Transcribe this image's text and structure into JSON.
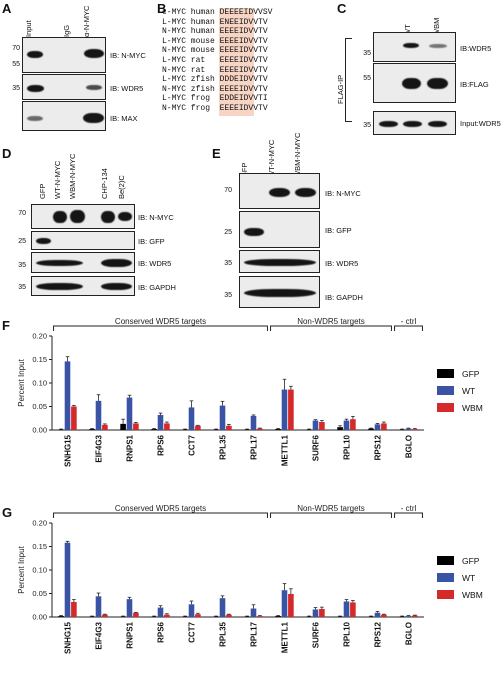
{
  "panels": {
    "A": "A",
    "B": "B",
    "C": "C",
    "D": "D",
    "E": "E",
    "F": "F",
    "G": "G"
  },
  "panel_a": {
    "lanes": [
      "Input",
      "IgG",
      "α-N-MYC"
    ],
    "blots": [
      {
        "label": "IB: N-MYC",
        "mw": [
          "70",
          "55"
        ]
      },
      {
        "label": "IB: WDR5",
        "mw": [
          "35"
        ]
      },
      {
        "label": "IB: MAX",
        "mw": []
      }
    ]
  },
  "panel_b": {
    "rows": [
      {
        "species": "c-MYC human",
        "seq": "DEEEEIDVVSV"
      },
      {
        "species": "L-MYC human",
        "seq": "ENEEIDVVTV"
      },
      {
        "species": "N-MYC human",
        "seq": "EEEEIDVVTV"
      },
      {
        "species": "L-MYC mouse",
        "seq": "EEEEIDVVTV"
      },
      {
        "species": "N-MYC mouse",
        "seq": "EEEEIDVVTV"
      },
      {
        "species": "L-MYC rat",
        "seq": "EEEEIDVVTV"
      },
      {
        "species": "N-MYC rat",
        "seq": "EEEEIDVVTV"
      },
      {
        "species": "L-MYC zfish",
        "seq": "DDDEIDVVTV"
      },
      {
        "species": "N-MYC zfish",
        "seq": "EEEEIDVVTV"
      },
      {
        "species": "L-MYC frog",
        "seq": "EDDEIDVVTI"
      },
      {
        "species": "N-MYC frog",
        "seq": "EEEEIDVVTV"
      }
    ]
  },
  "panel_c": {
    "lanes": [
      "-",
      "WT",
      "WBM"
    ],
    "side_label": "FLAG-IP",
    "blots": [
      {
        "label": "IB:WDR5",
        "mw": "35"
      },
      {
        "label": "IB:FLAG",
        "mw": "55"
      },
      {
        "label": "Input:WDR5",
        "mw": "35"
      }
    ]
  },
  "panel_d": {
    "lanes": [
      "GFP",
      "WT-N-MYC",
      "WBM-N-MYC",
      "CHP-134",
      "Be(2)C"
    ],
    "blots": [
      {
        "label": "IB: N-MYC",
        "mw": "70"
      },
      {
        "label": "IB: GFP",
        "mw": "25"
      },
      {
        "label": "IB: WDR5",
        "mw": "35"
      },
      {
        "label": "IB: GAPDH",
        "mw": "35"
      }
    ]
  },
  "panel_e": {
    "lanes": [
      "GFP",
      "WT-N-MYC",
      "WBM-N-MYC"
    ],
    "blots": [
      {
        "label": "IB: N-MYC",
        "mw": "70"
      },
      {
        "label": "IB: GFP",
        "mw": "25"
      },
      {
        "label": "IB: WDR5",
        "mw": "35"
      },
      {
        "label": "IB: GAPDH",
        "mw": "35"
      }
    ]
  },
  "colors": {
    "GFP": "#000000",
    "WT": "#3a53a4",
    "WBM": "#d42a2a"
  },
  "chart_data": [
    {
      "type": "bar",
      "panel": "F",
      "ylabel": "Percent Input",
      "ylim": [
        0,
        0.2
      ],
      "yticks": [
        "0.00",
        "0.05",
        "0.10",
        "0.15",
        "0.20"
      ],
      "categories": [
        "SNHG15",
        "EIF4G3",
        "RNPS1",
        "RPS6",
        "CCT7",
        "RPL35",
        "RPL17",
        "METTL1",
        "SURF6",
        "RPL10",
        "RPS12",
        "BGLO"
      ],
      "groups": [
        {
          "label": "Conserved WDR5 targets",
          "from": 0,
          "to": 6
        },
        {
          "label": "Non-WDR5 targets",
          "from": 7,
          "to": 10
        },
        {
          "label": "- ctrl",
          "from": 11,
          "to": 11
        }
      ],
      "series": [
        {
          "name": "GFP",
          "values": [
            0.001,
            0.002,
            0.013,
            0.002,
            0.001,
            0.001,
            0.001,
            0.002,
            0.001,
            0.006,
            0.003,
            0.001
          ],
          "err": [
            0.001,
            0.001,
            0.01,
            0.001,
            0.001,
            0.001,
            0.001,
            0.001,
            0.001,
            0.003,
            0.001,
            0.001
          ]
        },
        {
          "name": "WT",
          "values": [
            0.146,
            0.062,
            0.069,
            0.032,
            0.048,
            0.052,
            0.03,
            0.086,
            0.02,
            0.02,
            0.012,
            0.003
          ],
          "err": [
            0.01,
            0.013,
            0.005,
            0.004,
            0.014,
            0.009,
            0.002,
            0.022,
            0.002,
            0.003,
            0.002,
            0.001
          ]
        },
        {
          "name": "WBM",
          "values": [
            0.05,
            0.011,
            0.014,
            0.014,
            0.009,
            0.009,
            0.003,
            0.086,
            0.017,
            0.023,
            0.014,
            0.002
          ],
          "err": [
            0.002,
            0.002,
            0.002,
            0.003,
            0.001,
            0.003,
            0.001,
            0.007,
            0.003,
            0.006,
            0.003,
            0.001
          ]
        }
      ],
      "legend": [
        "GFP",
        "WT",
        "WBM"
      ]
    },
    {
      "type": "bar",
      "panel": "G",
      "ylabel": "Percent Input",
      "ylim": [
        0,
        0.2
      ],
      "yticks": [
        "0.00",
        "0.05",
        "0.10",
        "0.15",
        "0.20"
      ],
      "categories": [
        "SNHG15",
        "EIF4G3",
        "RNPS1",
        "RPS6",
        "CCT7",
        "RPL35",
        "RPL17",
        "METTL1",
        "SURF6",
        "RPL10",
        "RPS12",
        "BGLO"
      ],
      "groups": [
        {
          "label": "Conserved WDR5 targets",
          "from": 0,
          "to": 6
        },
        {
          "label": "Non-WDR5 targets",
          "from": 7,
          "to": 10
        },
        {
          "label": "- ctrl",
          "from": 11,
          "to": 11
        }
      ],
      "series": [
        {
          "name": "GFP",
          "values": [
            0.002,
            0.001,
            0.001,
            0.001,
            0.001,
            0.001,
            0.001,
            0.002,
            0.001,
            0.001,
            0.001,
            0.001
          ],
          "err": [
            0.001,
            0.001,
            0.001,
            0.001,
            0.001,
            0.001,
            0.001,
            0.001,
            0.001,
            0.001,
            0.001,
            0.001
          ]
        },
        {
          "name": "WT",
          "values": [
            0.158,
            0.044,
            0.038,
            0.02,
            0.027,
            0.04,
            0.018,
            0.057,
            0.016,
            0.033,
            0.009,
            0.002
          ],
          "err": [
            0.003,
            0.007,
            0.004,
            0.004,
            0.007,
            0.005,
            0.008,
            0.014,
            0.004,
            0.004,
            0.003,
            0.001
          ]
        },
        {
          "name": "WBM",
          "values": [
            0.032,
            0.005,
            0.009,
            0.005,
            0.006,
            0.005,
            0.002,
            0.049,
            0.017,
            0.031,
            0.005,
            0.003
          ],
          "err": [
            0.005,
            0.001,
            0.001,
            0.002,
            0.002,
            0.001,
            0.001,
            0.011,
            0.004,
            0.004,
            0.001,
            0.001
          ]
        }
      ],
      "legend": [
        "GFP",
        "WT",
        "WBM"
      ]
    }
  ]
}
